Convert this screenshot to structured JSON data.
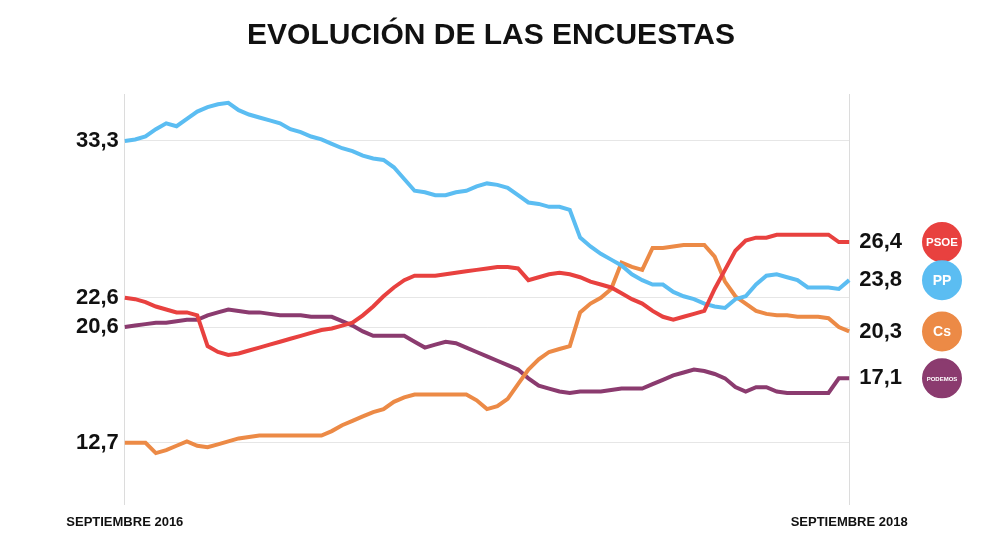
{
  "chart_data": {
    "type": "line",
    "title": "EVOLUCIÓN DE LAS ENCUESTAS",
    "categories": [
      "SEPTIEMBRE 2016",
      null,
      null,
      null,
      null,
      null,
      null,
      null,
      null,
      null,
      null,
      null,
      null,
      null,
      null,
      null,
      null,
      null,
      null,
      null,
      null,
      null,
      null,
      null,
      null,
      null,
      null,
      null,
      null,
      null,
      null,
      null,
      null,
      null,
      null,
      null,
      null,
      null,
      null,
      null,
      null,
      null,
      null,
      null,
      null,
      null,
      null,
      null,
      null,
      null,
      null,
      null,
      null,
      null,
      null,
      null,
      null,
      null,
      null,
      null,
      null,
      null,
      null,
      null,
      null,
      null,
      null,
      null,
      null,
      null,
      "SEPTIEMBRE 2018"
    ],
    "series": [
      {
        "name": "PSOE",
        "color": "#e8413f",
        "values": [
          22.6,
          22.5,
          22.3,
          22.0,
          21.8,
          21.6,
          21.6,
          21.4,
          19.3,
          18.9,
          18.7,
          18.8,
          19.0,
          19.2,
          19.4,
          19.6,
          19.8,
          20.0,
          20.2,
          20.4,
          20.5,
          20.7,
          20.9,
          21.4,
          22.0,
          22.7,
          23.3,
          23.8,
          24.1,
          24.1,
          24.1,
          24.2,
          24.3,
          24.4,
          24.5,
          24.6,
          24.7,
          24.7,
          24.6,
          23.8,
          24.0,
          24.2,
          24.3,
          24.2,
          24.0,
          23.7,
          23.5,
          23.3,
          22.9,
          22.5,
          22.2,
          21.7,
          21.3,
          21.1,
          21.3,
          21.5,
          21.7,
          23.2,
          24.5,
          25.8,
          26.5,
          26.7,
          26.7,
          26.9,
          26.9,
          26.9,
          26.9,
          26.9,
          26.9,
          26.4,
          26.4
        ]
      },
      {
        "name": "PP",
        "color": "#5bbdf2",
        "values": [
          33.3,
          33.4,
          33.6,
          34.1,
          34.5,
          34.3,
          34.8,
          35.3,
          35.6,
          35.8,
          35.9,
          35.4,
          35.1,
          34.9,
          34.7,
          34.5,
          34.1,
          33.9,
          33.6,
          33.4,
          33.1,
          32.8,
          32.6,
          32.3,
          32.1,
          32.0,
          31.5,
          30.7,
          29.9,
          29.8,
          29.6,
          29.6,
          29.8,
          29.9,
          30.2,
          30.4,
          30.3,
          30.1,
          29.6,
          29.1,
          29.0,
          28.8,
          28.8,
          28.6,
          26.7,
          26.1,
          25.6,
          25.2,
          24.8,
          24.2,
          23.8,
          23.5,
          23.5,
          23.0,
          22.7,
          22.5,
          22.2,
          22.0,
          21.9,
          22.5,
          22.7,
          23.5,
          24.1,
          24.2,
          24.0,
          23.8,
          23.3,
          23.3,
          23.3,
          23.2,
          23.8
        ]
      },
      {
        "name": "Cs",
        "color": "#ec8a46",
        "values": [
          12.7,
          12.7,
          12.7,
          12.0,
          12.2,
          12.5,
          12.8,
          12.5,
          12.4,
          12.6,
          12.8,
          13.0,
          13.1,
          13.2,
          13.2,
          13.2,
          13.2,
          13.2,
          13.2,
          13.2,
          13.5,
          13.9,
          14.2,
          14.5,
          14.8,
          15.0,
          15.5,
          15.8,
          16.0,
          16.0,
          16.0,
          16.0,
          16.0,
          16.0,
          15.6,
          15.0,
          15.2,
          15.7,
          16.7,
          17.7,
          18.4,
          18.9,
          19.1,
          19.3,
          21.6,
          22.2,
          22.6,
          23.2,
          25.0,
          24.7,
          24.5,
          26.0,
          26.0,
          26.1,
          26.2,
          26.2,
          26.2,
          25.4,
          23.7,
          22.7,
          22.2,
          21.7,
          21.5,
          21.4,
          21.4,
          21.3,
          21.3,
          21.3,
          21.2,
          20.6,
          20.3
        ]
      },
      {
        "name": "PODEMOS",
        "color": "#8b3b6f",
        "values": [
          20.6,
          20.7,
          20.8,
          20.9,
          20.9,
          21.0,
          21.1,
          21.1,
          21.4,
          21.6,
          21.8,
          21.7,
          21.6,
          21.6,
          21.5,
          21.4,
          21.4,
          21.4,
          21.3,
          21.3,
          21.3,
          21.0,
          20.7,
          20.3,
          20.0,
          20.0,
          20.0,
          20.0,
          19.6,
          19.2,
          19.4,
          19.6,
          19.5,
          19.2,
          18.9,
          18.6,
          18.3,
          18.0,
          17.7,
          17.1,
          16.6,
          16.4,
          16.2,
          16.1,
          16.2,
          16.2,
          16.2,
          16.3,
          16.4,
          16.4,
          16.4,
          16.7,
          17.0,
          17.3,
          17.5,
          17.7,
          17.6,
          17.4,
          17.1,
          16.5,
          16.2,
          16.5,
          16.5,
          16.2,
          16.1,
          16.1,
          16.1,
          16.1,
          16.1,
          17.1,
          17.1
        ]
      }
    ],
    "ylim": [
      8.5,
      36.5
    ],
    "yticks": [
      {
        "value": 12.7,
        "label": "12,7"
      },
      {
        "value": 20.6,
        "label": "20,6"
      },
      {
        "value": 22.6,
        "label": "22,6"
      },
      {
        "value": 33.3,
        "label": "33,3"
      }
    ],
    "y2lim": [
      8.5,
      36.5
    ],
    "y2ticks": [
      {
        "value": 17.1,
        "label": "17,1"
      },
      {
        "value": 20.3,
        "label": "20,3"
      },
      {
        "value": 23.8,
        "label": "23,8"
      },
      {
        "value": 26.4,
        "label": "26,4"
      }
    ],
    "grid": true
  }
}
